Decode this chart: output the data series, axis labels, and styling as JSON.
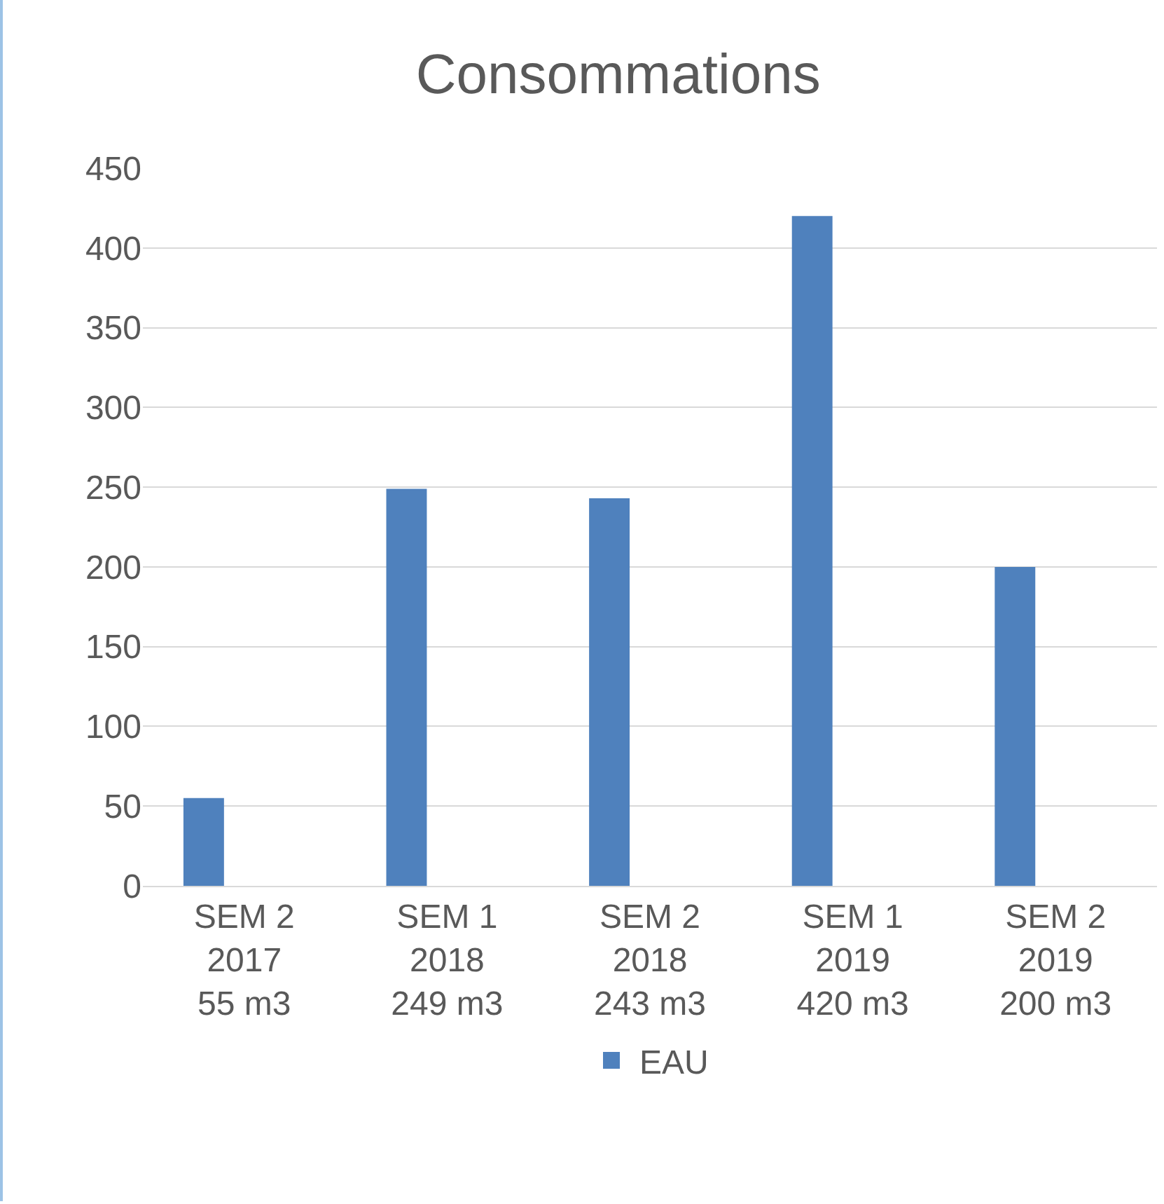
{
  "chart_data": {
    "type": "bar",
    "title": "Consommations",
    "categories": [
      "SEM 2\n2017\n55 m3",
      "SEM 1\n2018\n249 m3",
      "SEM 2\n2018\n243 m3",
      "SEM 1\n2019\n420 m3",
      "SEM 2\n2019\n200 m3"
    ],
    "series": [
      {
        "name": "EAU",
        "color": "#4f81bd",
        "values": [
          55,
          249,
          243,
          420,
          200
        ]
      }
    ],
    "ylim": [
      0,
      450
    ],
    "yticks": [
      0,
      50,
      100,
      150,
      200,
      250,
      300,
      350,
      400,
      450
    ],
    "grid": "y",
    "legend": "bottom"
  }
}
